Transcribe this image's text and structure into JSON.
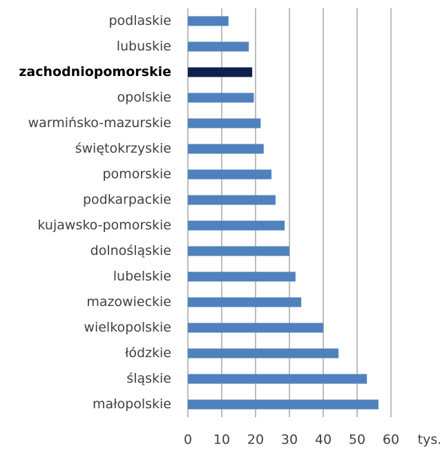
{
  "chart_data": {
    "type": "hbar",
    "categories": [
      "podlaskie",
      "lubuskie",
      "zachodniopomorskie",
      "opolskie",
      "warmińsko-mazurskie",
      "świętokrzyskie",
      "pomorskie",
      "podkarpackie",
      "kujawsko-pomorskie",
      "dolnośląskie",
      "lubelskie",
      "mazowieckie",
      "wielkopolskie",
      "łódzkie",
      "śląskie",
      "małopolskie"
    ],
    "values": [
      12,
      18,
      19,
      19.5,
      21.5,
      22.4,
      24.7,
      25.9,
      28.6,
      30,
      31.8,
      33.5,
      40,
      44.5,
      52.9,
      56.3
    ],
    "color": "#4f81bd",
    "colors": [
      "#4f81bd",
      "#4f81bd",
      "#0f1f4d",
      "#4f81bd",
      "#4f81bd",
      "#4f81bd",
      "#4f81bd",
      "#4f81bd",
      "#4f81bd",
      "#4f81bd",
      "#4f81bd",
      "#4f81bd",
      "#4f81bd",
      "#4f81bd",
      "#4f81bd",
      "#4f81bd"
    ],
    "x_label": "tys.",
    "xlim": [
      0,
      60
    ],
    "xticks": [
      0,
      10,
      20,
      30,
      40,
      50,
      60
    ],
    "grid": true
  }
}
